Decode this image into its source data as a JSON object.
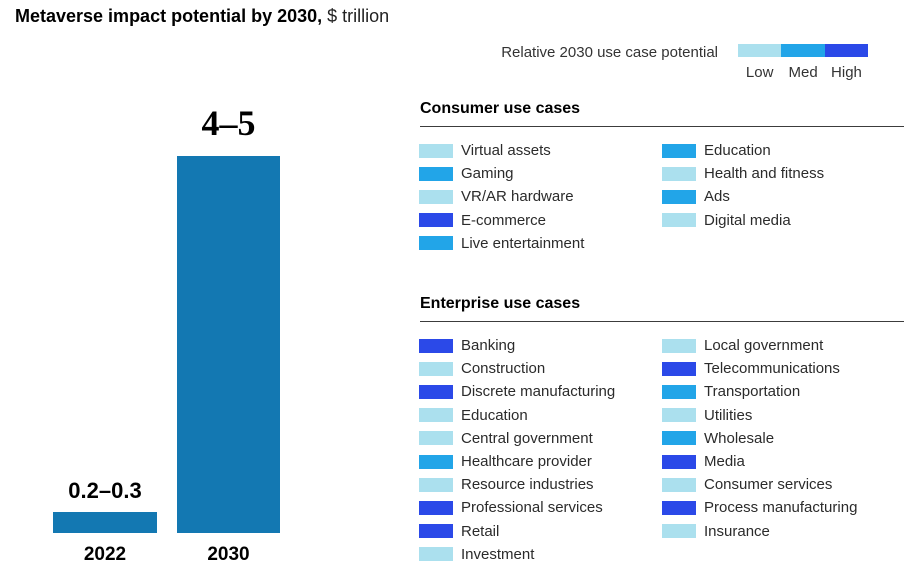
{
  "title": {
    "bold": "Metaverse impact potential by 2030,",
    "regular": " $ trillion"
  },
  "legend": {
    "label": "Relative 2030 use case potential",
    "levels": [
      {
        "name": "Low",
        "key": "low",
        "color": "#abe0ee"
      },
      {
        "name": "Med",
        "key": "med",
        "color": "#22a5e8"
      },
      {
        "name": "High",
        "key": "high",
        "color": "#2b49e8"
      }
    ]
  },
  "chart_data": {
    "type": "bar",
    "title": "Metaverse impact potential by 2030, $ trillion",
    "categories": [
      "2022",
      "2030"
    ],
    "values_label": [
      "0.2–0.3",
      "4–5"
    ],
    "values_range": [
      [
        0.2,
        0.3
      ],
      [
        4,
        5
      ]
    ],
    "values_mid": [
      0.25,
      4.5
    ],
    "bar_color": "#1378b2",
    "ylabel": "$ trillion",
    "ylim": [
      0,
      5
    ],
    "grid": false,
    "legend_position": "none"
  },
  "sections": [
    {
      "heading": "Consumer use cases",
      "columns": [
        [
          {
            "label": "Virtual assets",
            "level": "low"
          },
          {
            "label": "Gaming",
            "level": "med"
          },
          {
            "label": "VR/AR hardware",
            "level": "low"
          },
          {
            "label": "E-commerce",
            "level": "high"
          },
          {
            "label": "Live entertainment",
            "level": "med"
          }
        ],
        [
          {
            "label": "Education",
            "level": "med"
          },
          {
            "label": "Health and fitness",
            "level": "low"
          },
          {
            "label": "Ads",
            "level": "med"
          },
          {
            "label": "Digital media",
            "level": "low"
          }
        ]
      ]
    },
    {
      "heading": "Enterprise use cases",
      "columns": [
        [
          {
            "label": "Banking",
            "level": "high"
          },
          {
            "label": "Construction",
            "level": "low"
          },
          {
            "label": "Discrete manufacturing",
            "level": "high"
          },
          {
            "label": "Education",
            "level": "low"
          },
          {
            "label": "Central government",
            "level": "low"
          },
          {
            "label": "Healthcare provider",
            "level": "med"
          },
          {
            "label": "Resource industries",
            "level": "low"
          },
          {
            "label": "Professional services",
            "level": "high"
          },
          {
            "label": "Retail",
            "level": "high"
          },
          {
            "label": "Investment",
            "level": "low"
          }
        ],
        [
          {
            "label": "Local government",
            "level": "low"
          },
          {
            "label": "Telecommunications",
            "level": "high"
          },
          {
            "label": "Transportation",
            "level": "med"
          },
          {
            "label": "Utilities",
            "level": "low"
          },
          {
            "label": "Wholesale",
            "level": "med"
          },
          {
            "label": "Media",
            "level": "high"
          },
          {
            "label": "Consumer services",
            "level": "low"
          },
          {
            "label": "Process manufacturing",
            "level": "high"
          },
          {
            "label": "Insurance",
            "level": "low"
          }
        ]
      ]
    }
  ]
}
